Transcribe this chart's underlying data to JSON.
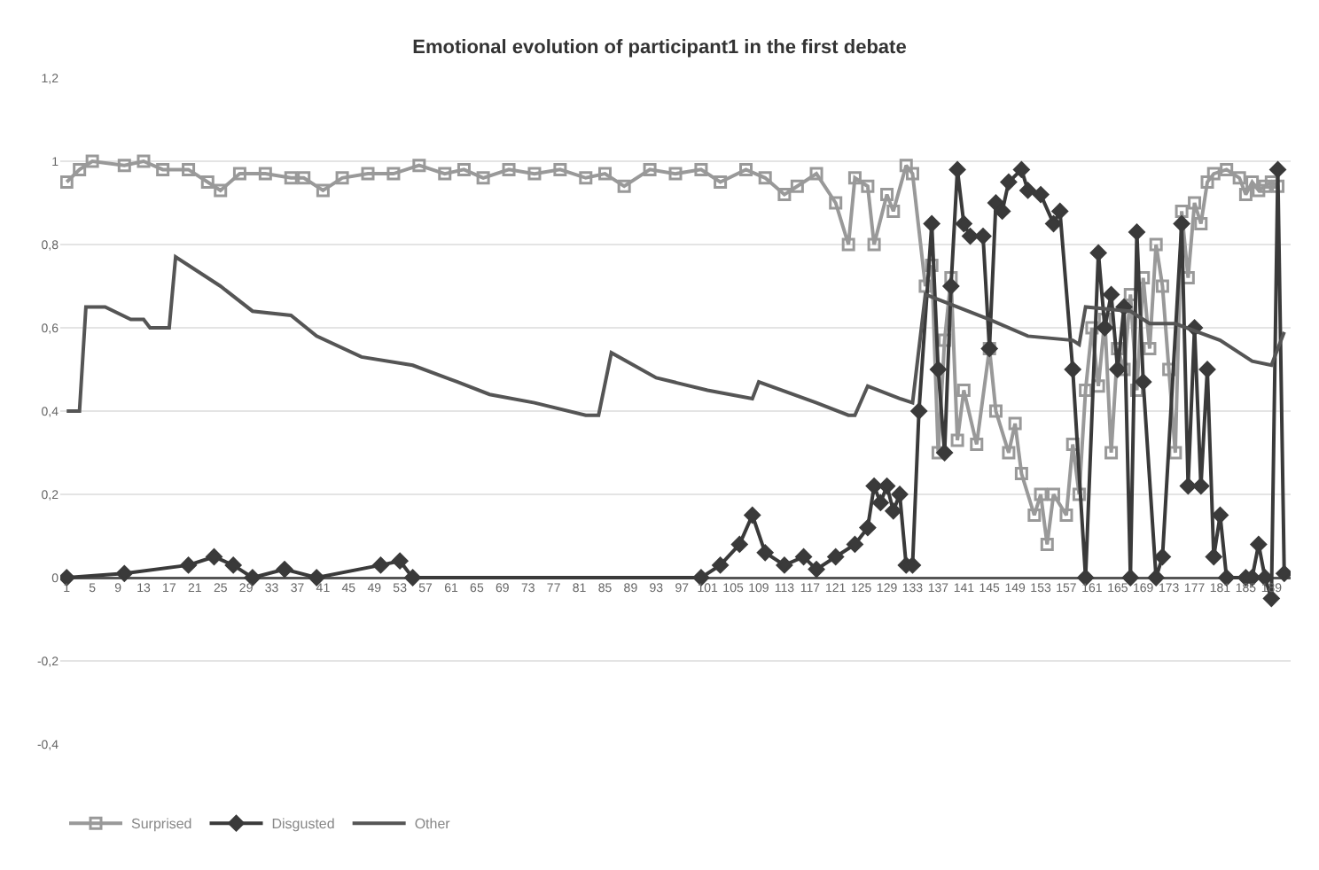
{
  "chart_data": {
    "type": "line",
    "title": "Emotional evolution of participant1 in the first debate",
    "xlim": [
      0,
      192
    ],
    "xticks": [
      1,
      5,
      9,
      13,
      17,
      21,
      25,
      29,
      33,
      37,
      41,
      45,
      49,
      53,
      57,
      61,
      65,
      69,
      73,
      77,
      81,
      85,
      89,
      93,
      97,
      101,
      105,
      109,
      113,
      117,
      121,
      125,
      129,
      133,
      137,
      141,
      145,
      149,
      153,
      157,
      161,
      165,
      169,
      173,
      177,
      181,
      185,
      189
    ],
    "ylim": [
      -0.4,
      1.2
    ],
    "yticks": [
      {
        "value": -0.4,
        "label": "-0,4"
      },
      {
        "value": -0.2,
        "label": "-0,2"
      },
      {
        "value": 0,
        "label": "0"
      },
      {
        "value": 0.2,
        "label": "0,2"
      },
      {
        "value": 0.4,
        "label": "0,4"
      },
      {
        "value": 0.6,
        "label": "0,6"
      },
      {
        "value": 0.8,
        "label": "0,8"
      },
      {
        "value": 1,
        "label": "1"
      },
      {
        "value": 1.2,
        "label": "1,2"
      }
    ],
    "grid": "y",
    "legend": "bottom left",
    "series": [
      {
        "name": "Surprised",
        "color": "#999999",
        "marker": "square",
        "x": [
          1,
          3,
          5,
          10,
          13,
          16,
          20,
          23,
          25,
          28,
          32,
          36,
          38,
          41,
          44,
          48,
          52,
          56,
          60,
          63,
          66,
          70,
          74,
          78,
          82,
          85,
          88,
          92,
          96,
          100,
          103,
          107,
          110,
          113,
          115,
          118,
          121,
          123,
          124,
          126,
          127,
          129,
          130,
          132,
          133,
          135,
          136,
          137,
          138,
          139,
          140,
          141,
          143,
          145,
          146,
          148,
          149,
          150,
          152,
          153,
          154,
          155,
          157,
          158,
          159,
          160,
          161,
          162,
          163,
          164,
          165,
          166,
          167,
          168,
          169,
          170,
          171,
          172,
          173,
          174,
          175,
          176,
          177,
          178,
          179,
          180,
          182,
          184,
          185,
          186,
          187,
          188,
          189,
          190
        ],
        "values": [
          0.95,
          0.98,
          1.0,
          0.99,
          1.0,
          0.98,
          0.98,
          0.95,
          0.93,
          0.97,
          0.97,
          0.96,
          0.96,
          0.93,
          0.96,
          0.97,
          0.97,
          0.99,
          0.97,
          0.98,
          0.96,
          0.98,
          0.97,
          0.98,
          0.96,
          0.97,
          0.94,
          0.98,
          0.97,
          0.98,
          0.95,
          0.98,
          0.96,
          0.92,
          0.94,
          0.97,
          0.9,
          0.8,
          0.96,
          0.94,
          0.8,
          0.92,
          0.88,
          0.99,
          0.97,
          0.7,
          0.75,
          0.3,
          0.57,
          0.72,
          0.33,
          0.45,
          0.32,
          0.55,
          0.4,
          0.3,
          0.37,
          0.25,
          0.15,
          0.2,
          0.08,
          0.2,
          0.15,
          0.32,
          0.2,
          0.45,
          0.6,
          0.46,
          0.62,
          0.3,
          0.55,
          0.5,
          0.68,
          0.45,
          0.72,
          0.55,
          0.8,
          0.7,
          0.5,
          0.3,
          0.88,
          0.72,
          0.9,
          0.85,
          0.95,
          0.97,
          0.98,
          0.96,
          0.92,
          0.95,
          0.93,
          0.94,
          0.95,
          0.94
        ]
      },
      {
        "name": "Disgusted",
        "color": "#3a3a3a",
        "marker": "diamond",
        "x": [
          1,
          10,
          20,
          24,
          27,
          30,
          35,
          40,
          50,
          53,
          55,
          100,
          103,
          106,
          108,
          110,
          113,
          116,
          118,
          121,
          124,
          126,
          127,
          128,
          129,
          130,
          131,
          132,
          133,
          134,
          136,
          137,
          138,
          139,
          140,
          141,
          142,
          144,
          145,
          146,
          147,
          148,
          150,
          151,
          153,
          155,
          156,
          158,
          160,
          162,
          163,
          164,
          165,
          166,
          167,
          168,
          169,
          171,
          172,
          175,
          176,
          177,
          178,
          179,
          180,
          181,
          182,
          185,
          186,
          187,
          188,
          189,
          190,
          191
        ],
        "values": [
          0,
          0.01,
          0.03,
          0.05,
          0.03,
          0,
          0.02,
          0,
          0.03,
          0.04,
          0,
          0,
          0.03,
          0.08,
          0.15,
          0.06,
          0.03,
          0.05,
          0.02,
          0.05,
          0.08,
          0.12,
          0.22,
          0.18,
          0.22,
          0.16,
          0.2,
          0.03,
          0.03,
          0.4,
          0.85,
          0.5,
          0.3,
          0.7,
          0.98,
          0.85,
          0.82,
          0.82,
          0.55,
          0.9,
          0.88,
          0.95,
          0.98,
          0.93,
          0.92,
          0.85,
          0.88,
          0.5,
          0.0,
          0.78,
          0.6,
          0.68,
          0.5,
          0.65,
          0.0,
          0.83,
          0.47,
          0.0,
          0.05,
          0.85,
          0.22,
          0.6,
          0.22,
          0.5,
          0.05,
          0.15,
          0.0,
          0.0,
          0.0,
          0.08,
          0.0,
          -0.05,
          0.98,
          0.01
        ]
      },
      {
        "name": "Other",
        "color": "#555555",
        "marker": "none",
        "x": [
          1,
          3,
          4,
          7,
          11,
          13,
          14,
          16,
          17,
          18,
          25,
          30,
          36,
          40,
          47,
          55,
          62,
          67,
          74,
          82,
          84,
          86,
          93,
          101,
          108,
          109,
          118,
          123,
          124,
          126,
          131,
          133,
          135,
          145,
          151,
          158,
          159,
          160,
          167,
          170,
          174,
          181,
          186,
          189,
          191
        ],
        "values": [
          0.4,
          0.4,
          0.65,
          0.65,
          0.62,
          0.62,
          0.6,
          0.6,
          0.6,
          0.77,
          0.7,
          0.64,
          0.63,
          0.58,
          0.53,
          0.51,
          0.47,
          0.44,
          0.42,
          0.39,
          0.39,
          0.54,
          0.48,
          0.45,
          0.43,
          0.47,
          0.42,
          0.39,
          0.39,
          0.46,
          0.43,
          0.42,
          0.68,
          0.62,
          0.58,
          0.57,
          0.56,
          0.65,
          0.64,
          0.61,
          0.61,
          0.57,
          0.52,
          0.51,
          0.59
        ]
      }
    ]
  }
}
